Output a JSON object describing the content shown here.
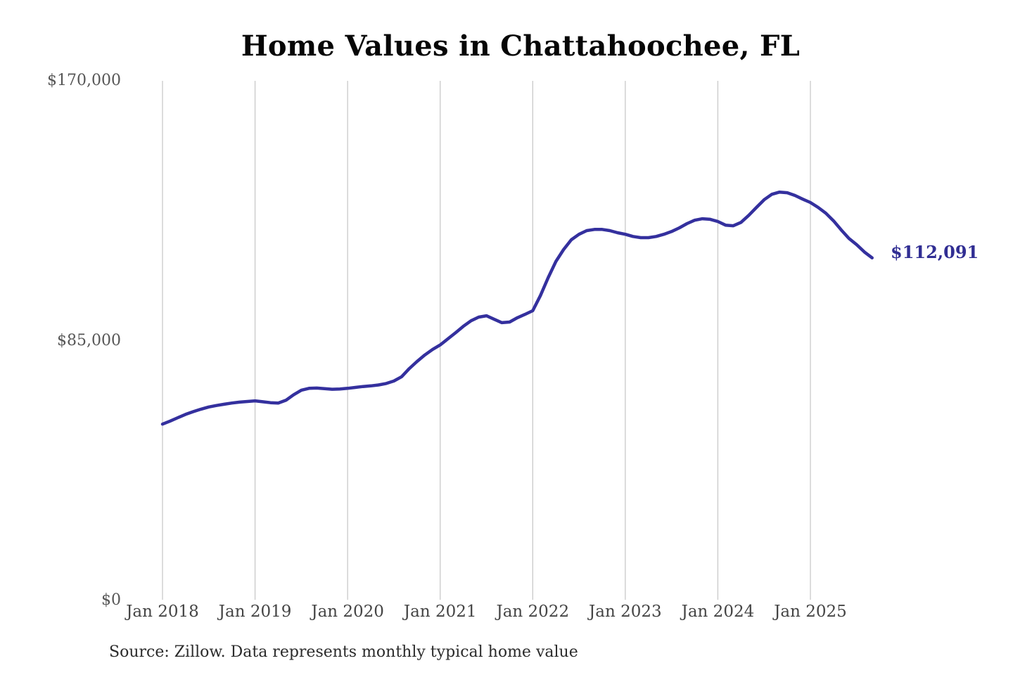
{
  "title": "Home Values in Chattahoochee, FL",
  "source_note": "Source: Zillow. Data represents monthly typical home value",
  "colors": {
    "line": "#34309e",
    "value_label": "#312e93",
    "grid": "#c9c9c9",
    "title_text": "#060606",
    "y_tick_text": "#565656",
    "x_tick_text": "#454545",
    "source_text": "#2b2b2b",
    "background": "#ffffff"
  },
  "y_axis": {
    "ticks": [
      {
        "label": "$170,000",
        "value": 170000
      },
      {
        "label": "$85,000",
        "value": 85000
      },
      {
        "label": "$0",
        "value": 0
      }
    ]
  },
  "x_axis": {
    "ticks": [
      "Jan 2018",
      "Jan 2019",
      "Jan 2020",
      "Jan 2021",
      "Jan 2022",
      "Jan 2023",
      "Jan 2024",
      "Jan 2025"
    ]
  },
  "chart_data": {
    "type": "line",
    "title": "Home Values in Chattahoochee, FL",
    "xlabel": "",
    "ylabel": "",
    "ylim": [
      0,
      170000
    ],
    "y_tick_labels": [
      "$0",
      "$85,000",
      "$170,000"
    ],
    "x_tick_labels": [
      "Jan 2018",
      "Jan 2019",
      "Jan 2020",
      "Jan 2021",
      "Jan 2022",
      "Jan 2023",
      "Jan 2024",
      "Jan 2025"
    ],
    "x_range": {
      "start": "Jan 2018",
      "end": "Sep 2025",
      "frequency": "monthly"
    },
    "grid": "vertical-only",
    "legend": "none",
    "last_value": 112091,
    "last_value_label": "$112,091",
    "series": [
      {
        "name": "Typical home value (USD)",
        "monthly_values": [
          57700,
          58700,
          59800,
          60900,
          61800,
          62600,
          63300,
          63800,
          64200,
          64600,
          64900,
          65100,
          65300,
          65000,
          64700,
          64600,
          65500,
          67300,
          68800,
          69400,
          69500,
          69300,
          69100,
          69200,
          69400,
          69700,
          70000,
          70200,
          70500,
          71000,
          71800,
          73200,
          75900,
          78200,
          80300,
          82100,
          83600,
          85600,
          87600,
          89700,
          91500,
          92700,
          93150,
          92000,
          90900,
          91100,
          92500,
          93600,
          94800,
          99800,
          105600,
          110900,
          114800,
          118000,
          119800,
          121000,
          121400,
          121400,
          121000,
          120300,
          119800,
          119100,
          118700,
          118700,
          119100,
          119800,
          120700,
          121900,
          123300,
          124400,
          124900,
          124700,
          124000,
          122800,
          122600,
          123700,
          126000,
          128600,
          131100,
          132900,
          133600,
          133400,
          132500,
          131300,
          130200,
          128600,
          126700,
          124200,
          121200,
          118450,
          116400,
          114000,
          112091
        ]
      }
    ]
  }
}
